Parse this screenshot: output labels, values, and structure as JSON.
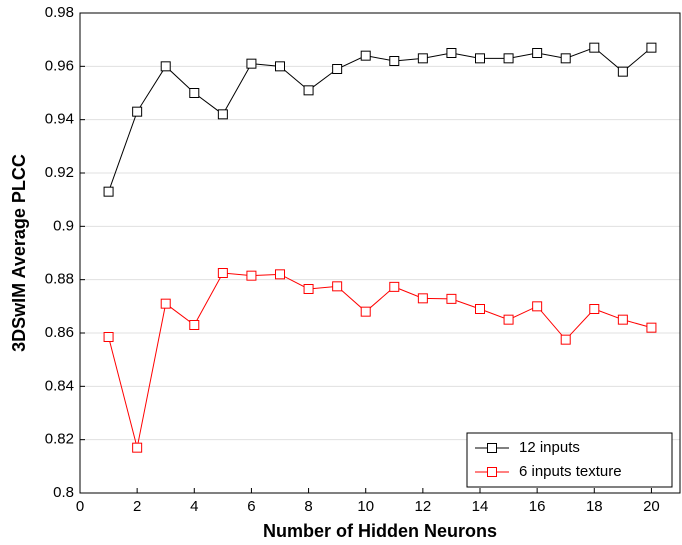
{
  "chart_data": {
    "type": "line",
    "xlabel": "Number of Hidden Neurons",
    "ylabel": "3DSwIM Average PLCC",
    "x": [
      1,
      2,
      3,
      4,
      5,
      6,
      7,
      8,
      9,
      10,
      11,
      12,
      13,
      14,
      15,
      16,
      17,
      18,
      19,
      20
    ],
    "series": [
      {
        "name": "12 inputs",
        "color": "#000000",
        "values": [
          0.913,
          0.943,
          0.96,
          0.95,
          0.942,
          0.961,
          0.96,
          0.951,
          0.959,
          0.964,
          0.962,
          0.963,
          0.965,
          0.963,
          0.963,
          0.965,
          0.963,
          0.967,
          0.958,
          0.967
        ]
      },
      {
        "name": "6 inputs texture",
        "color": "#ff0000",
        "values": [
          0.8585,
          0.817,
          0.871,
          0.863,
          0.8825,
          0.8815,
          0.882,
          0.8765,
          0.8775,
          0.868,
          0.8773,
          0.873,
          0.8728,
          0.869,
          0.865,
          0.87,
          0.8575,
          0.869,
          0.865,
          0.862
        ]
      }
    ],
    "xlim": [
      0,
      21
    ],
    "xticks": [
      0,
      2,
      4,
      6,
      8,
      10,
      12,
      14,
      16,
      18,
      20
    ],
    "ylim": [
      0.8,
      0.98
    ],
    "yticks": [
      0.8,
      0.82,
      0.84,
      0.86,
      0.88,
      0.9,
      0.92,
      0.94,
      0.96,
      0.98
    ],
    "grid": true,
    "legend": "lower right"
  }
}
